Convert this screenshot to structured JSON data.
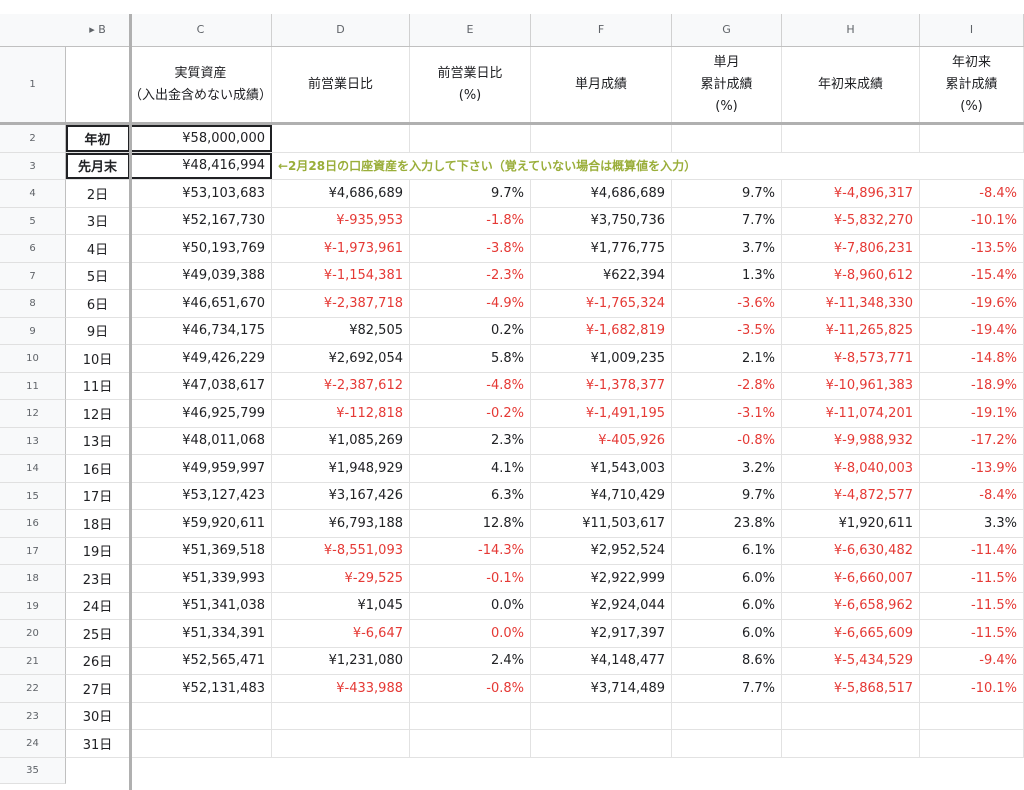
{
  "columns": [
    "B",
    "C",
    "D",
    "E",
    "F",
    "G",
    "H",
    "I"
  ],
  "header_row": {
    "row_num": "1",
    "b": "",
    "c": [
      "実質資産",
      "（入出金含めない成績）"
    ],
    "d": [
      "前営業日比"
    ],
    "e": [
      "前営業日比",
      "(%)"
    ],
    "f": [
      "単月成績"
    ],
    "g": [
      "単月",
      "累計成績",
      "(%)"
    ],
    "h": [
      "年初来成績"
    ],
    "i": [
      "年初来",
      "累計成績",
      "(%)"
    ]
  },
  "row2": {
    "num": "2",
    "label": "年初",
    "value": "¥58,000,000"
  },
  "row3": {
    "num": "3",
    "label": "先月末",
    "value": "¥48,416,994",
    "note": "←2月28日の口座資産を入力して下さい（覚えていない場合は概算値を入力）"
  },
  "rows": [
    {
      "num": "4",
      "b": "2日",
      "c": "¥53,103,683",
      "d": "¥4,686,689",
      "e": "9.7%",
      "f": "¥4,686,689",
      "g": "9.7%",
      "h": "¥-4,896,317",
      "i": "-8.4%"
    },
    {
      "num": "5",
      "b": "3日",
      "c": "¥52,167,730",
      "d": "¥-935,953",
      "e": "-1.8%",
      "f": "¥3,750,736",
      "g": "7.7%",
      "h": "¥-5,832,270",
      "i": "-10.1%"
    },
    {
      "num": "6",
      "b": "4日",
      "c": "¥50,193,769",
      "d": "¥-1,973,961",
      "e": "-3.8%",
      "f": "¥1,776,775",
      "g": "3.7%",
      "h": "¥-7,806,231",
      "i": "-13.5%"
    },
    {
      "num": "7",
      "b": "5日",
      "c": "¥49,039,388",
      "d": "¥-1,154,381",
      "e": "-2.3%",
      "f": "¥622,394",
      "g": "1.3%",
      "h": "¥-8,960,612",
      "i": "-15.4%"
    },
    {
      "num": "8",
      "b": "6日",
      "c": "¥46,651,670",
      "d": "¥-2,387,718",
      "e": "-4.9%",
      "f": "¥-1,765,324",
      "g": "-3.6%",
      "h": "¥-11,348,330",
      "i": "-19.6%"
    },
    {
      "num": "9",
      "b": "9日",
      "c": "¥46,734,175",
      "d": "¥82,505",
      "e": "0.2%",
      "f": "¥-1,682,819",
      "g": "-3.5%",
      "h": "¥-11,265,825",
      "i": "-19.4%"
    },
    {
      "num": "10",
      "b": "10日",
      "c": "¥49,426,229",
      "d": "¥2,692,054",
      "e": "5.8%",
      "f": "¥1,009,235",
      "g": "2.1%",
      "h": "¥-8,573,771",
      "i": "-14.8%"
    },
    {
      "num": "11",
      "b": "11日",
      "c": "¥47,038,617",
      "d": "¥-2,387,612",
      "e": "-4.8%",
      "f": "¥-1,378,377",
      "g": "-2.8%",
      "h": "¥-10,961,383",
      "i": "-18.9%"
    },
    {
      "num": "12",
      "b": "12日",
      "c": "¥46,925,799",
      "d": "¥-112,818",
      "e": "-0.2%",
      "f": "¥-1,491,195",
      "g": "-3.1%",
      "h": "¥-11,074,201",
      "i": "-19.1%"
    },
    {
      "num": "13",
      "b": "13日",
      "c": "¥48,011,068",
      "d": "¥1,085,269",
      "e": "2.3%",
      "f": "¥-405,926",
      "g": "-0.8%",
      "h": "¥-9,988,932",
      "i": "-17.2%"
    },
    {
      "num": "14",
      "b": "16日",
      "c": "¥49,959,997",
      "d": "¥1,948,929",
      "e": "4.1%",
      "f": "¥1,543,003",
      "g": "3.2%",
      "h": "¥-8,040,003",
      "i": "-13.9%"
    },
    {
      "num": "15",
      "b": "17日",
      "c": "¥53,127,423",
      "d": "¥3,167,426",
      "e": "6.3%",
      "f": "¥4,710,429",
      "g": "9.7%",
      "h": "¥-4,872,577",
      "i": "-8.4%"
    },
    {
      "num": "16",
      "b": "18日",
      "c": "¥59,920,611",
      "d": "¥6,793,188",
      "e": "12.8%",
      "f": "¥11,503,617",
      "g": "23.8%",
      "h": "¥1,920,611",
      "i": "3.3%"
    },
    {
      "num": "17",
      "b": "19日",
      "c": "¥51,369,518",
      "d": "¥-8,551,093",
      "e": "-14.3%",
      "f": "¥2,952,524",
      "g": "6.1%",
      "h": "¥-6,630,482",
      "i": "-11.4%"
    },
    {
      "num": "18",
      "b": "23日",
      "c": "¥51,339,993",
      "d": "¥-29,525",
      "e": "-0.1%",
      "f": "¥2,922,999",
      "g": "6.0%",
      "h": "¥-6,660,007",
      "i": "-11.5%"
    },
    {
      "num": "19",
      "b": "24日",
      "c": "¥51,341,038",
      "d": "¥1,045",
      "e": "0.0%",
      "f": "¥2,924,044",
      "g": "6.0%",
      "h": "¥-6,658,962",
      "i": "-11.5%"
    },
    {
      "num": "20",
      "b": "25日",
      "c": "¥51,334,391",
      "d": "¥-6,647",
      "e": "0.0%",
      "f": "¥2,917,397",
      "g": "6.0%",
      "h": "¥-6,665,609",
      "i": "-11.5%"
    },
    {
      "num": "21",
      "b": "26日",
      "c": "¥52,565,471",
      "d": "¥1,231,080",
      "e": "2.4%",
      "f": "¥4,148,477",
      "g": "8.6%",
      "h": "¥-5,434,529",
      "i": "-9.4%"
    },
    {
      "num": "22",
      "b": "27日",
      "c": "¥52,131,483",
      "d": "¥-433,988",
      "e": "-0.8%",
      "f": "¥3,714,489",
      "g": "7.7%",
      "h": "¥-5,868,517",
      "i": "-10.1%"
    },
    {
      "num": "23",
      "b": "30日",
      "c": "",
      "d": "",
      "e": "",
      "f": "",
      "g": "",
      "h": "",
      "i": ""
    },
    {
      "num": "24",
      "b": "31日",
      "c": "",
      "d": "",
      "e": "",
      "f": "",
      "g": "",
      "h": "",
      "i": ""
    }
  ],
  "last_row_num": "35",
  "negative_neutral_cells": [
    "0.0%"
  ],
  "colors": {
    "negative": "#e53935",
    "note": "#9aae3a",
    "header_bg": "#f8f9fa"
  }
}
